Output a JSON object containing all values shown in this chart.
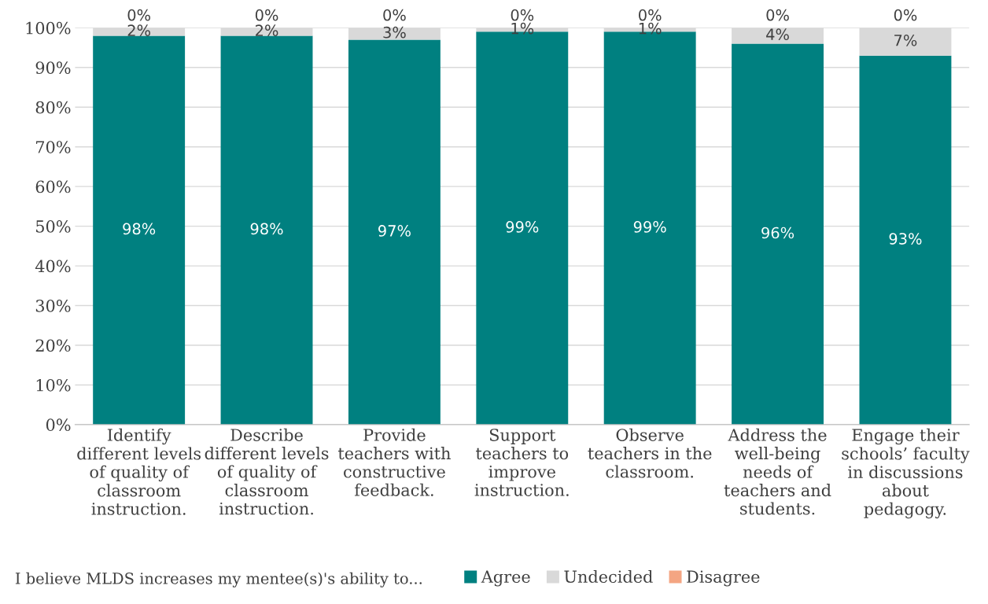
{
  "chart_data": {
    "type": "bar",
    "stacked": true,
    "categories": [
      "Identify\ndifferent levels\nof quality of\nclassroom\ninstruction.",
      "Describe\ndifferent levels\nof quality of\nclassroom\ninstruction.",
      "Provide\nteachers with\nconstructive\nfeedback.",
      "Support\nteachers to\nimprove\ninstruction.",
      "Observe\nteachers in the\nclassroom.",
      "Address the\nwell-being\nneeds of\nteachers and\nstudents.",
      "Engage their\nschools’ faculty\nin discussions\nabout\npedagogy."
    ],
    "series": [
      {
        "name": "Agree",
        "color": "#008080",
        "values": [
          98,
          98,
          97,
          99,
          99,
          96,
          93
        ],
        "value_labels": [
          "98%",
          "98%",
          "97%",
          "99%",
          "99%",
          "96%",
          "93%"
        ]
      },
      {
        "name": "Undecided",
        "color": "#d9d9d9",
        "values": [
          2,
          2,
          3,
          1,
          1,
          4,
          7
        ],
        "value_labels": [
          "2%",
          "2%",
          "3%",
          "1%",
          "1%",
          "4%",
          "7%"
        ]
      },
      {
        "name": "Disagree",
        "color": "#f4a582",
        "values": [
          0,
          0,
          0,
          0,
          0,
          0,
          0
        ],
        "value_labels": [
          "0%",
          "0%",
          "0%",
          "0%",
          "0%",
          "0%",
          "0%"
        ]
      }
    ],
    "ylim": [
      0,
      100
    ],
    "yticks": [
      {
        "value": 0,
        "label": "0%"
      },
      {
        "value": 10,
        "label": "10%"
      },
      {
        "value": 20,
        "label": "20%"
      },
      {
        "value": 30,
        "label": "30%"
      },
      {
        "value": 40,
        "label": "40%"
      },
      {
        "value": 50,
        "label": "50%"
      },
      {
        "value": 60,
        "label": "60%"
      },
      {
        "value": 70,
        "label": "70%"
      },
      {
        "value": 80,
        "label": "80%"
      },
      {
        "value": 90,
        "label": "90%"
      },
      {
        "value": 100,
        "label": "100%"
      }
    ],
    "grid": "y",
    "legend": "bottom",
    "annotations": [
      "I believe MLDS increases my mentee(s)'s ability to..."
    ]
  }
}
